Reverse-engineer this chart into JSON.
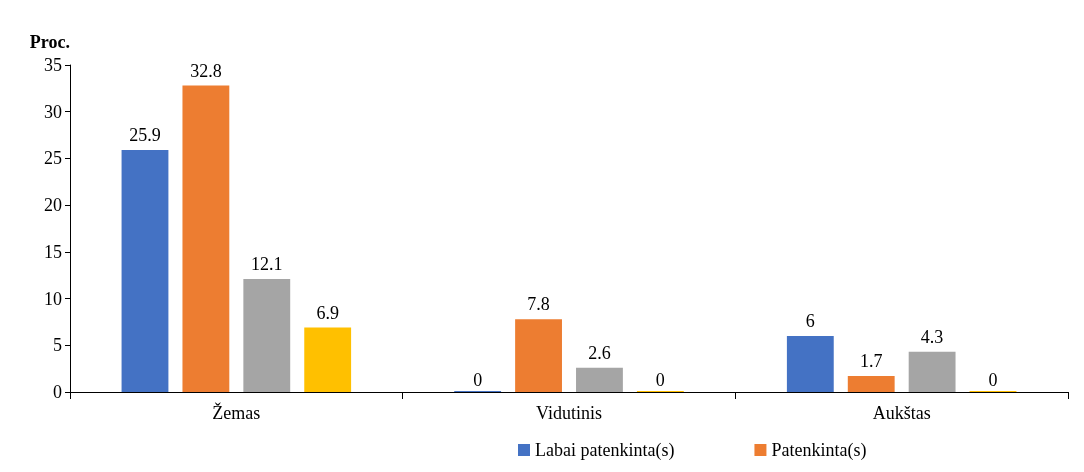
{
  "chart_data": {
    "type": "bar",
    "ylabel": "Proc.",
    "categories": [
      "Žemas",
      "Vidutinis",
      "Aukštas"
    ],
    "series": [
      {
        "name": "Labai patenkinta(s)",
        "color": "#4472c4",
        "values": [
          25.9,
          0,
          6
        ]
      },
      {
        "name": "Patenkinta(s)",
        "color": "#ed7d31",
        "values": [
          32.8,
          7.8,
          1.7
        ]
      },
      {
        "color": "#a5a5a5",
        "values": [
          12.1,
          2.6,
          4.3
        ]
      },
      {
        "color": "#ffc000",
        "values": [
          6.9,
          0,
          0
        ]
      }
    ],
    "ylim": [
      0,
      35
    ],
    "yticks": [
      0,
      5,
      10,
      15,
      20,
      25,
      30,
      35
    ],
    "grid": false,
    "legend": "bottom",
    "data_labels": true
  }
}
